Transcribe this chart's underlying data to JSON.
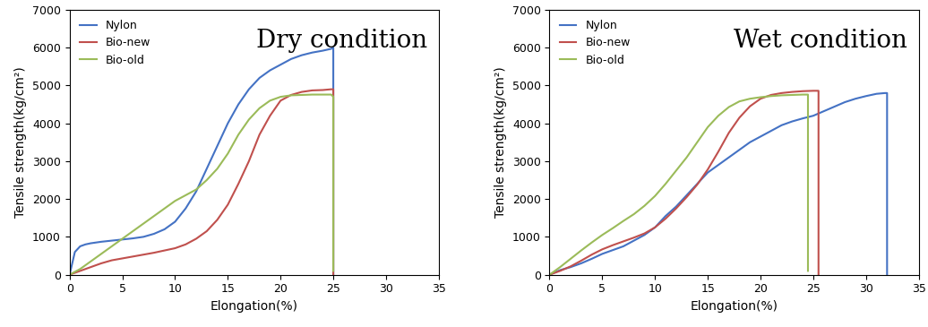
{
  "dry": {
    "title": "Dry condition",
    "nylon": {
      "color": "#4472C4",
      "x": [
        0,
        0.5,
        1,
        1.5,
        2,
        3,
        4,
        5,
        6,
        7,
        8,
        9,
        10,
        11,
        12,
        13,
        14,
        15,
        16,
        17,
        18,
        19,
        20,
        21,
        22,
        23,
        24,
        24.8,
        25.0,
        25.0
      ],
      "y": [
        0,
        600,
        750,
        800,
        830,
        870,
        900,
        930,
        960,
        1000,
        1080,
        1200,
        1400,
        1750,
        2200,
        2800,
        3400,
        4000,
        4500,
        4900,
        5200,
        5400,
        5550,
        5700,
        5800,
        5870,
        5920,
        5970,
        6000,
        0
      ]
    },
    "bio_new": {
      "color": "#C0504D",
      "x": [
        0,
        1,
        2,
        3,
        4,
        5,
        6,
        7,
        8,
        9,
        10,
        11,
        12,
        13,
        14,
        15,
        16,
        17,
        18,
        19,
        20,
        21,
        22,
        23,
        24,
        24.8,
        25.0,
        25.0
      ],
      "y": [
        0,
        100,
        200,
        300,
        380,
        430,
        480,
        530,
        580,
        640,
        700,
        800,
        950,
        1150,
        1450,
        1850,
        2400,
        3000,
        3700,
        4200,
        4600,
        4750,
        4830,
        4870,
        4880,
        4900,
        4900,
        0
      ]
    },
    "bio_old": {
      "color": "#9BBB59",
      "x": [
        0,
        1,
        2,
        3,
        4,
        5,
        6,
        7,
        8,
        9,
        10,
        11,
        12,
        13,
        14,
        15,
        16,
        17,
        18,
        19,
        19.5,
        20,
        21,
        22,
        23,
        24,
        24.8,
        25.0,
        25.0
      ],
      "y": [
        0,
        150,
        350,
        550,
        750,
        950,
        1150,
        1350,
        1550,
        1750,
        1950,
        2100,
        2250,
        2500,
        2800,
        3200,
        3700,
        4100,
        4400,
        4600,
        4650,
        4700,
        4740,
        4750,
        4760,
        4760,
        4760,
        4700,
        100
      ]
    }
  },
  "wet": {
    "title": "Wet condition",
    "nylon": {
      "color": "#4472C4",
      "x": [
        0,
        1,
        2,
        3,
        4,
        5,
        6,
        7,
        8,
        9,
        10,
        11,
        12,
        13,
        14,
        15,
        16,
        17,
        18,
        19,
        20,
        21,
        22,
        23,
        24,
        25,
        26,
        27,
        28,
        29,
        30,
        31,
        31.8,
        32.0,
        32.0
      ],
      "y": [
        0,
        120,
        200,
        300,
        420,
        550,
        650,
        750,
        900,
        1050,
        1250,
        1550,
        1800,
        2100,
        2400,
        2700,
        2900,
        3100,
        3300,
        3500,
        3650,
        3800,
        3950,
        4050,
        4130,
        4200,
        4320,
        4440,
        4560,
        4650,
        4720,
        4780,
        4800,
        4800,
        0
      ]
    },
    "bio_new": {
      "color": "#C0504D",
      "x": [
        0,
        1,
        2,
        3,
        4,
        5,
        6,
        7,
        8,
        9,
        10,
        11,
        12,
        13,
        14,
        15,
        16,
        17,
        18,
        19,
        20,
        21,
        22,
        23,
        24,
        25,
        25.5,
        25.5
      ],
      "y": [
        0,
        100,
        220,
        370,
        530,
        670,
        780,
        880,
        980,
        1090,
        1250,
        1480,
        1750,
        2050,
        2380,
        2780,
        3250,
        3750,
        4150,
        4450,
        4650,
        4750,
        4800,
        4830,
        4850,
        4860,
        4860,
        0
      ]
    },
    "bio_old": {
      "color": "#9BBB59",
      "x": [
        0,
        1,
        2,
        3,
        4,
        5,
        6,
        7,
        8,
        9,
        10,
        11,
        12,
        13,
        14,
        15,
        16,
        17,
        18,
        19,
        20,
        21,
        22,
        23,
        24,
        24.5,
        24.5
      ],
      "y": [
        0,
        200,
        420,
        640,
        850,
        1050,
        1230,
        1420,
        1600,
        1820,
        2080,
        2400,
        2750,
        3100,
        3500,
        3900,
        4200,
        4430,
        4580,
        4650,
        4690,
        4720,
        4740,
        4750,
        4760,
        4760,
        100
      ]
    }
  },
  "ylabel": "Tensile strength(kg/cm²)",
  "xlabel": "Elongation(%)",
  "ylim": [
    0,
    7000
  ],
  "xlim": [
    0,
    35
  ],
  "yticks": [
    0,
    1000,
    2000,
    3000,
    4000,
    5000,
    6000,
    7000
  ],
  "xticks": [
    0,
    5,
    10,
    15,
    20,
    25,
    30,
    35
  ],
  "legend_labels": [
    "Nylon",
    "Bio-new",
    "Bio-old"
  ],
  "legend_colors": [
    "#4472C4",
    "#C0504D",
    "#9BBB59"
  ],
  "title_fontsize": 20,
  "axis_fontsize": 10,
  "tick_fontsize": 9,
  "legend_fontsize": 9
}
